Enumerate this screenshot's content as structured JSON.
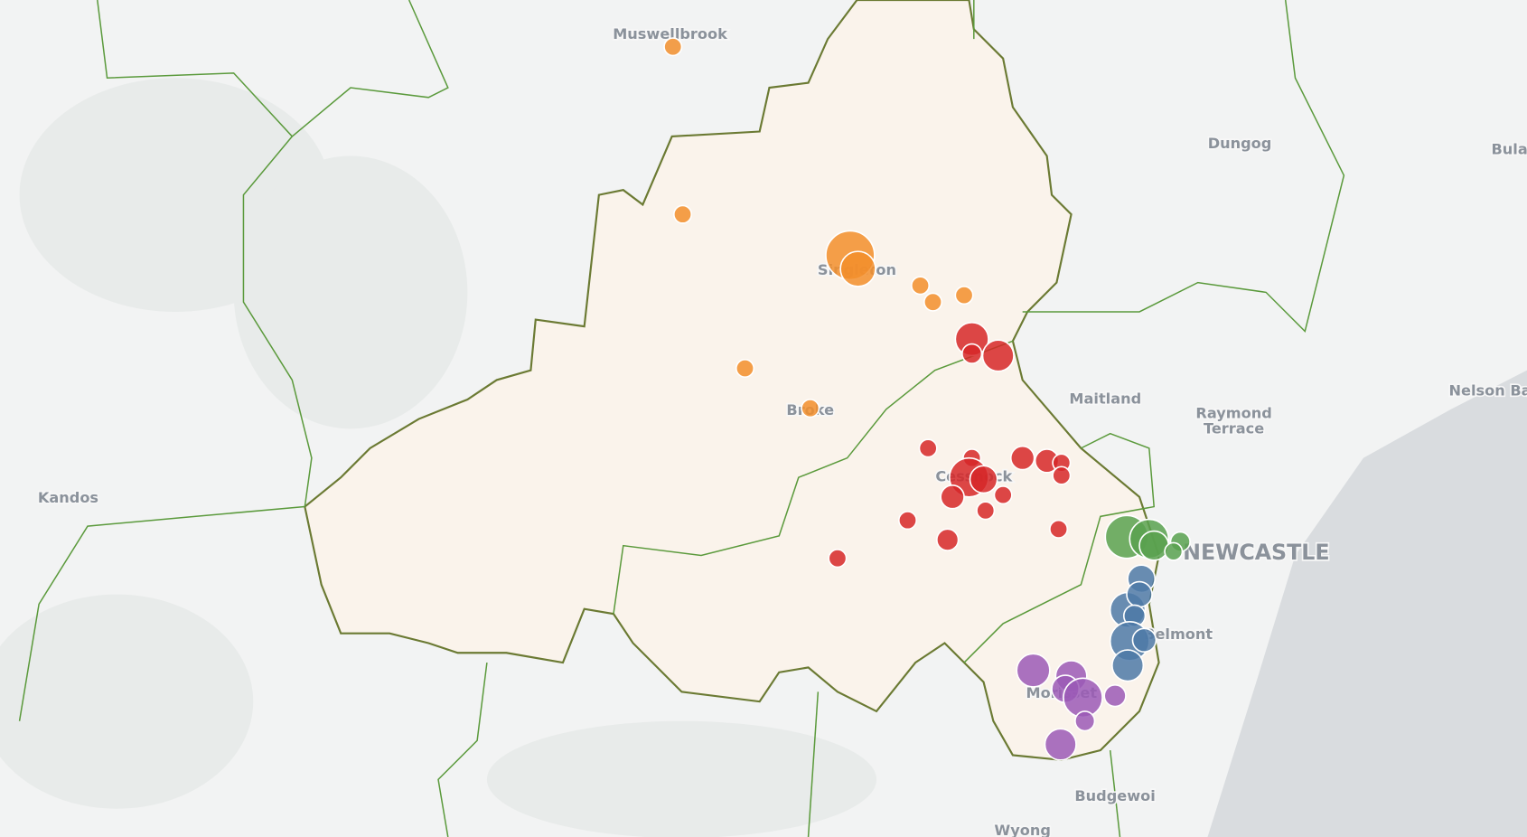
{
  "places": {
    "muswellbrook": "Muswellbrook",
    "dungog": "Dungog",
    "bula": "Bula",
    "singleton": "Singleton",
    "maitland": "Maitland",
    "raymond_terrace": [
      "Raymond",
      "Terrace"
    ],
    "nelson_bay": "Nelson Ba",
    "kandos": "Kandos",
    "broke": "Broke",
    "cessnock": "Cessnock",
    "newcastle": "NEWCASTLE",
    "belmont": "Belmont",
    "morisset": "Morisset",
    "budgewoi": "Budgewoi",
    "wyong": "Wyong"
  }
}
